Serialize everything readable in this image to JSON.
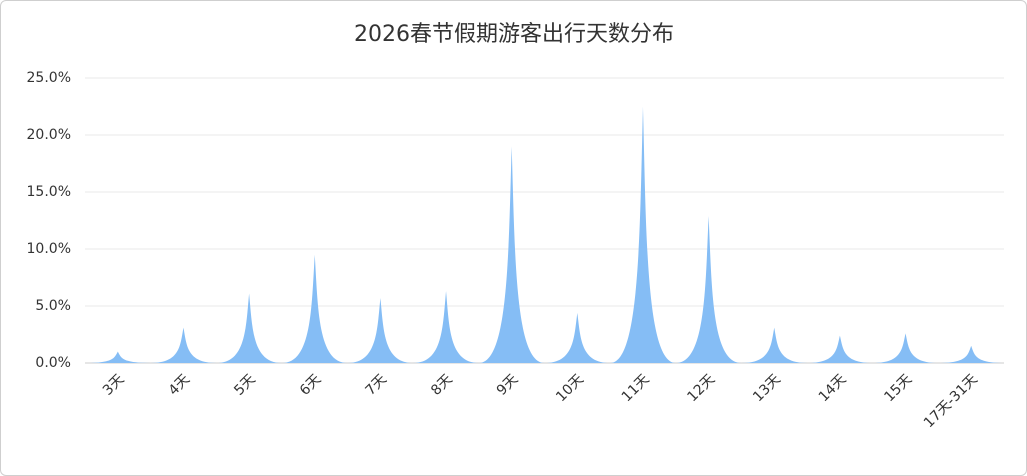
{
  "chart_data": {
    "type": "pictorial-bar",
    "title": "2026春节假期游客出行天数分布",
    "categories": [
      "3天",
      "4天",
      "5天",
      "6天",
      "7天",
      "8天",
      "9天",
      "10天",
      "11天",
      "12天",
      "13天",
      "14天",
      "15天",
      "17天-31天"
    ],
    "values": [
      1.0,
      3.1,
      6.1,
      9.5,
      5.7,
      6.3,
      19.0,
      4.4,
      22.5,
      12.9,
      3.1,
      2.4,
      2.6,
      1.5
    ],
    "color": "#85bdf5",
    "ylim": [
      0,
      25
    ],
    "yticks": [
      {
        "value": 0,
        "label": "0.0%"
      },
      {
        "value": 5,
        "label": "5.0%"
      },
      {
        "value": 10,
        "label": "10.0%"
      },
      {
        "value": 15,
        "label": "15.0%"
      },
      {
        "value": 20,
        "label": "20.0%"
      },
      {
        "value": 25,
        "label": "25.0%"
      }
    ],
    "grid": true
  }
}
